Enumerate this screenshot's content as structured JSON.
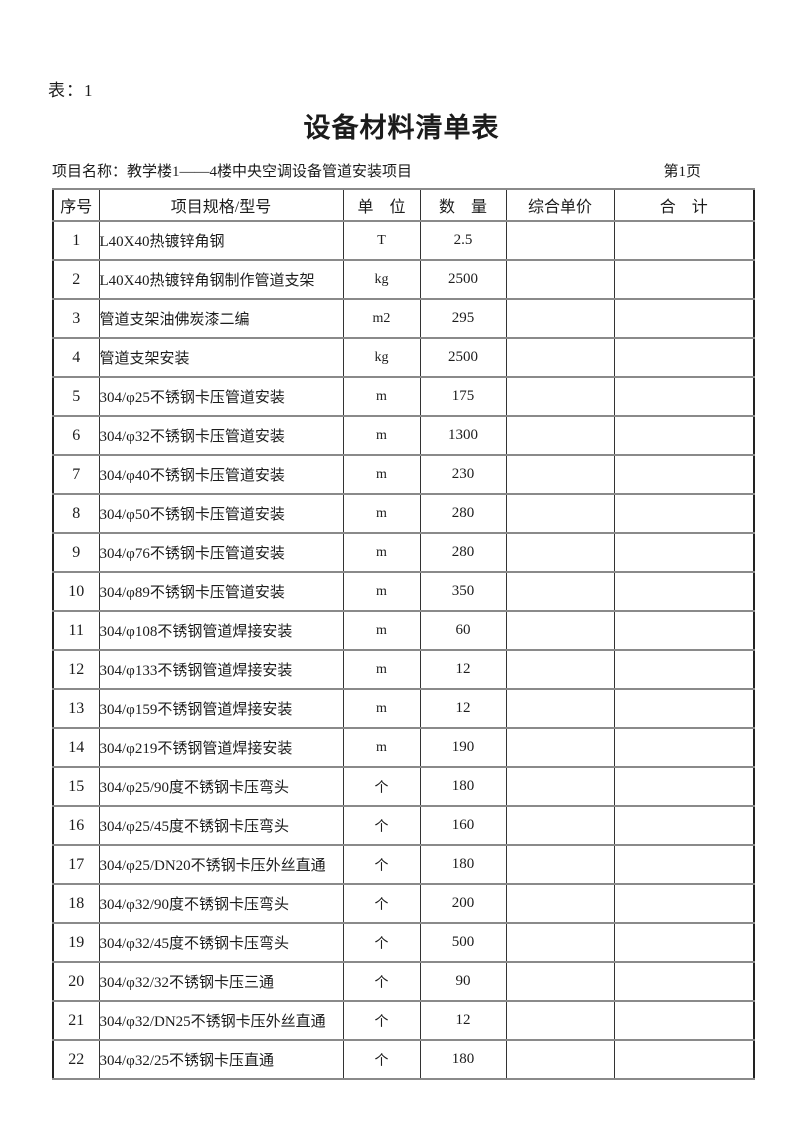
{
  "page": {
    "table_label": "表：1",
    "title": "设备材料清单表",
    "project_label": "项目名称：教学楼1——4楼中央空调设备管道安装项目",
    "page_number": "第1页"
  },
  "table": {
    "columns": [
      "序号",
      "项目规格/型号",
      "单　位",
      "数　量",
      "综合单价",
      "合　计"
    ],
    "rows": [
      {
        "no": "1",
        "spec": "L40X40热镀锌角钢",
        "unit": "T",
        "qty": "2.5",
        "unit_price": "",
        "total": ""
      },
      {
        "no": "2",
        "spec": "L40X40热镀锌角钢制作管道支架",
        "unit": "kg",
        "qty": "2500",
        "unit_price": "",
        "total": ""
      },
      {
        "no": "3",
        "spec": "管道支架油佛炭漆二编",
        "unit": "m2",
        "qty": "295",
        "unit_price": "",
        "total": ""
      },
      {
        "no": "4",
        "spec": "管道支架安装",
        "unit": "kg",
        "qty": "2500",
        "unit_price": "",
        "total": ""
      },
      {
        "no": "5",
        "spec": "304/φ25不锈钢卡压管道安装",
        "unit": "m",
        "qty": "175",
        "unit_price": "",
        "total": ""
      },
      {
        "no": "6",
        "spec": "304/φ32不锈钢卡压管道安装",
        "unit": "m",
        "qty": "1300",
        "unit_price": "",
        "total": ""
      },
      {
        "no": "7",
        "spec": "304/φ40不锈钢卡压管道安装",
        "unit": "m",
        "qty": "230",
        "unit_price": "",
        "total": ""
      },
      {
        "no": "8",
        "spec": "304/φ50不锈钢卡压管道安装",
        "unit": "m",
        "qty": "280",
        "unit_price": "",
        "total": ""
      },
      {
        "no": "9",
        "spec": "304/φ76不锈钢卡压管道安装",
        "unit": "m",
        "qty": "280",
        "unit_price": "",
        "total": ""
      },
      {
        "no": "10",
        "spec": "304/φ89不锈钢卡压管道安装",
        "unit": "m",
        "qty": "350",
        "unit_price": "",
        "total": ""
      },
      {
        "no": "11",
        "spec": "304/φ108不锈钢管道焊接安装",
        "unit": "m",
        "qty": "60",
        "unit_price": "",
        "total": ""
      },
      {
        "no": "12",
        "spec": "304/φ133不锈钢管道焊接安装",
        "unit": "m",
        "qty": "12",
        "unit_price": "",
        "total": ""
      },
      {
        "no": "13",
        "spec": "304/φ159不锈钢管道焊接安装",
        "unit": "m",
        "qty": "12",
        "unit_price": "",
        "total": ""
      },
      {
        "no": "14",
        "spec": "304/φ219不锈钢管道焊接安装",
        "unit": "m",
        "qty": "190",
        "unit_price": "",
        "total": ""
      },
      {
        "no": "15",
        "spec": "304/φ25/90度不锈钢卡压弯头",
        "unit": "个",
        "qty": "180",
        "unit_price": "",
        "total": ""
      },
      {
        "no": "16",
        "spec": "304/φ25/45度不锈钢卡压弯头",
        "unit": "个",
        "qty": "160",
        "unit_price": "",
        "total": ""
      },
      {
        "no": "17",
        "spec": "304/φ25/DN20不锈钢卡压外丝直通",
        "unit": "个",
        "qty": "180",
        "unit_price": "",
        "total": ""
      },
      {
        "no": "18",
        "spec": "304/φ32/90度不锈钢卡压弯头",
        "unit": "个",
        "qty": "200",
        "unit_price": "",
        "total": ""
      },
      {
        "no": "19",
        "spec": "304/φ32/45度不锈钢卡压弯头",
        "unit": "个",
        "qty": "500",
        "unit_price": "",
        "total": ""
      },
      {
        "no": "20",
        "spec": "304/φ32/32不锈钢卡压三通",
        "unit": "个",
        "qty": "90",
        "unit_price": "",
        "total": ""
      },
      {
        "no": "21",
        "spec": "304/φ32/DN25不锈钢卡压外丝直通",
        "unit": "个",
        "qty": "12",
        "unit_price": "",
        "total": ""
      },
      {
        "no": "22",
        "spec": "304/φ32/25不锈钢卡压直通",
        "unit": "个",
        "qty": "180",
        "unit_price": "",
        "total": ""
      }
    ]
  }
}
